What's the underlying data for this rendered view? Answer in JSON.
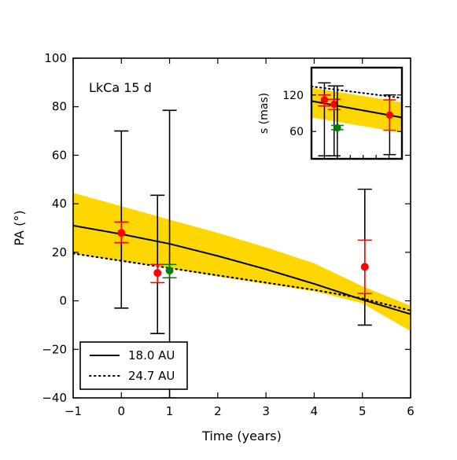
{
  "chart_data": [
    {
      "type": "line",
      "panel": "main",
      "annotation": "LkCa 15 d",
      "xlabel": "Time (years)",
      "ylabel": "PA (°)",
      "xlim": [
        -1,
        6
      ],
      "ylim": [
        -40,
        100
      ],
      "xticks": [
        -1,
        0,
        1,
        2,
        3,
        4,
        5,
        6
      ],
      "yticks": [
        -40,
        -20,
        0,
        20,
        40,
        60,
        80,
        100
      ],
      "grid": false,
      "legend_position": "lower-left",
      "band": {
        "color": "#ffd700",
        "x": [
          -1,
          0,
          1,
          2,
          3,
          4,
          5,
          6
        ],
        "upper": [
          44.5,
          39,
          33.5,
          28,
          22,
          15.5,
          6,
          -2
        ],
        "lower": [
          19.5,
          16.5,
          13.5,
          10,
          7,
          4,
          -1,
          -12.5
        ]
      },
      "series": [
        {
          "name": "18.0 AU",
          "style": "solid",
          "x": [
            -1,
            0,
            1,
            2,
            3,
            4,
            5,
            6
          ],
          "y": [
            31,
            27.5,
            23.5,
            18.5,
            13,
            7,
            0.5,
            -5.5
          ]
        },
        {
          "name": "24.7 AU",
          "style": "dotted",
          "x": [
            -1,
            0,
            1,
            2,
            3,
            4,
            5,
            6
          ],
          "y": [
            19.5,
            16.5,
            13.5,
            10.5,
            7.5,
            4.5,
            1,
            -4
          ]
        }
      ],
      "points": [
        {
          "x": 0.0,
          "y": 28,
          "black_err": [
            -3,
            70
          ],
          "color_err": [
            24,
            32.5
          ],
          "color": "#ff0000"
        },
        {
          "x": 0.75,
          "y": 11.5,
          "black_err": [
            -13.5,
            43.5
          ],
          "color_err": [
            7.5,
            15
          ],
          "color": "#ff0000"
        },
        {
          "x": 1.0,
          "y": 12.5,
          "black_err": [
            -40,
            78.5
          ],
          "color_err": [
            9.5,
            15
          ],
          "color": "#008000"
        },
        {
          "x": 5.05,
          "y": 14,
          "black_err": [
            -10,
            46
          ],
          "color_err": [
            3,
            25
          ],
          "color": "#ff0000"
        }
      ]
    },
    {
      "type": "line",
      "panel": "inset",
      "ylabel": "s (mas)",
      "xlim": [
        -1,
        6
      ],
      "ylim": [
        15,
        165
      ],
      "yticks": [
        60,
        120
      ],
      "band": {
        "color": "#ffd700",
        "x": [
          -1,
          6
        ],
        "upper": [
          132,
          108
        ],
        "lower": [
          83,
          58
        ]
      },
      "series": [
        {
          "name": "18.0 AU",
          "style": "solid",
          "x": [
            -1,
            6
          ],
          "y": [
            110,
            83
          ]
        },
        {
          "name": "24.7 AU",
          "style": "dotted",
          "x": [
            -1,
            6
          ],
          "y": [
            134,
            115
          ]
        }
      ],
      "points": [
        {
          "x": 0.0,
          "y": 112,
          "black_err": [
            20,
            140
          ],
          "color_err": [
            102,
            120
          ],
          "color": "#ff0000"
        },
        {
          "x": 0.75,
          "y": 105,
          "black_err": [
            20,
            135
          ],
          "color_err": [
            96,
            113
          ],
          "color": "#ff0000"
        },
        {
          "x": 1.0,
          "y": 66,
          "black_err": [
            15,
            135
          ],
          "color_err": [
            63,
            70
          ],
          "color": "#008000"
        },
        {
          "x": 5.05,
          "y": 87,
          "black_err": [
            22,
            120
          ],
          "color_err": [
            62,
            112
          ],
          "color": "#ff0000"
        }
      ]
    }
  ]
}
